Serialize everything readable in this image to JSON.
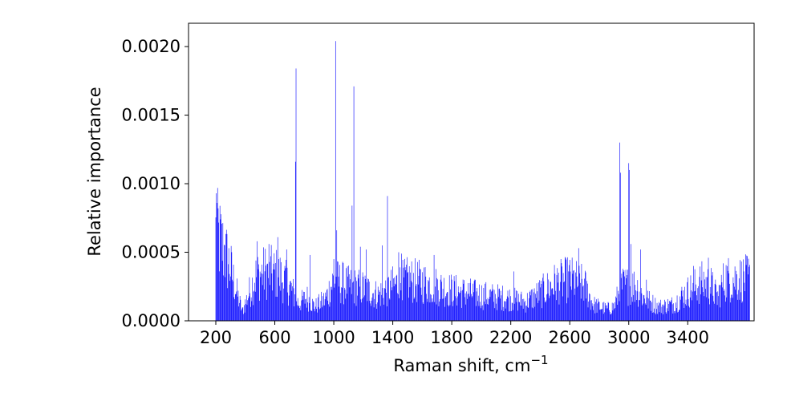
{
  "chart_data": {
    "type": "bar",
    "title": "",
    "xlabel_text": "Raman shift, cm",
    "xlabel_superscript": "−1",
    "ylabel": "Relative importance",
    "xlim": [
      15,
      3850
    ],
    "ylim": [
      0,
      0.00217
    ],
    "xticks": [
      200,
      600,
      1000,
      1400,
      1800,
      2200,
      2600,
      3000,
      3400
    ],
    "yticks": [
      0.0,
      0.0005,
      0.001,
      0.0015,
      0.002
    ],
    "ytick_labels": [
      "0.0000",
      "0.0005",
      "0.0010",
      "0.0015",
      "0.0020"
    ],
    "bar_color": "#0000ff",
    "spectrum": {
      "start": 200,
      "step": 4,
      "count": 906,
      "note_values_in_data_units": true,
      "envelope": [
        [
          200,
          0.00075
        ],
        [
          240,
          0.00065
        ],
        [
          300,
          0.00045
        ],
        [
          340,
          0.00025
        ],
        [
          380,
          8e-05
        ],
        [
          420,
          0.00022
        ],
        [
          470,
          0.00038
        ],
        [
          540,
          0.00042
        ],
        [
          620,
          0.0004
        ],
        [
          700,
          0.0003
        ],
        [
          760,
          0.00015
        ],
        [
          820,
          0.0002
        ],
        [
          870,
          0.00012
        ],
        [
          940,
          0.00018
        ],
        [
          1000,
          0.00035
        ],
        [
          1100,
          0.0003
        ],
        [
          1200,
          0.00028
        ],
        [
          1300,
          0.00022
        ],
        [
          1400,
          0.0003
        ],
        [
          1500,
          0.00035
        ],
        [
          1600,
          0.00033
        ],
        [
          1800,
          0.00026
        ],
        [
          2000,
          0.00022
        ],
        [
          2200,
          0.00019
        ],
        [
          2300,
          0.00016
        ],
        [
          2400,
          0.00024
        ],
        [
          2500,
          0.00032
        ],
        [
          2600,
          0.00036
        ],
        [
          2700,
          0.0003
        ],
        [
          2760,
          0.00014
        ],
        [
          2850,
          0.0001
        ],
        [
          2900,
          0.00012
        ],
        [
          2950,
          0.0003
        ],
        [
          3050,
          0.0003
        ],
        [
          3100,
          0.0002
        ],
        [
          3200,
          0.00012
        ],
        [
          3300,
          0.00014
        ],
        [
          3400,
          0.00025
        ],
        [
          3500,
          0.00033
        ],
        [
          3560,
          0.0003
        ],
        [
          3600,
          0.0002
        ],
        [
          3650,
          0.00036
        ],
        [
          3660,
          0.00036
        ]
      ],
      "peaks": [
        [
          204,
          0.00093
        ],
        [
          208,
          0.00086
        ],
        [
          216,
          0.00082
        ],
        [
          232,
          0.00074
        ],
        [
          260,
          0.00055
        ],
        [
          480,
          0.00058
        ],
        [
          560,
          0.00056
        ],
        [
          620,
          0.00061
        ],
        [
          680,
          0.00052
        ],
        [
          740,
          0.00116
        ],
        [
          744,
          0.00184
        ],
        [
          840,
          0.00048
        ],
        [
          1000,
          0.00045
        ],
        [
          1012,
          0.00204
        ],
        [
          1020,
          0.00066
        ],
        [
          1060,
          0.00043
        ],
        [
          1124,
          0.00084
        ],
        [
          1136,
          0.00171
        ],
        [
          1180,
          0.00054
        ],
        [
          1220,
          0.00052
        ],
        [
          1328,
          0.00055
        ],
        [
          1364,
          0.00091
        ],
        [
          1440,
          0.0005
        ],
        [
          1460,
          0.00049
        ],
        [
          1680,
          0.00048
        ],
        [
          2220,
          0.00036
        ],
        [
          2660,
          0.00053
        ],
        [
          2940,
          0.0013
        ],
        [
          2944,
          0.00108
        ],
        [
          3000,
          0.00115
        ],
        [
          3004,
          0.0011
        ],
        [
          3016,
          0.00056
        ],
        [
          3080,
          0.00052
        ],
        [
          3120,
          0.0003
        ],
        [
          3440,
          0.0004
        ],
        [
          3540,
          0.00046
        ]
      ]
    }
  }
}
